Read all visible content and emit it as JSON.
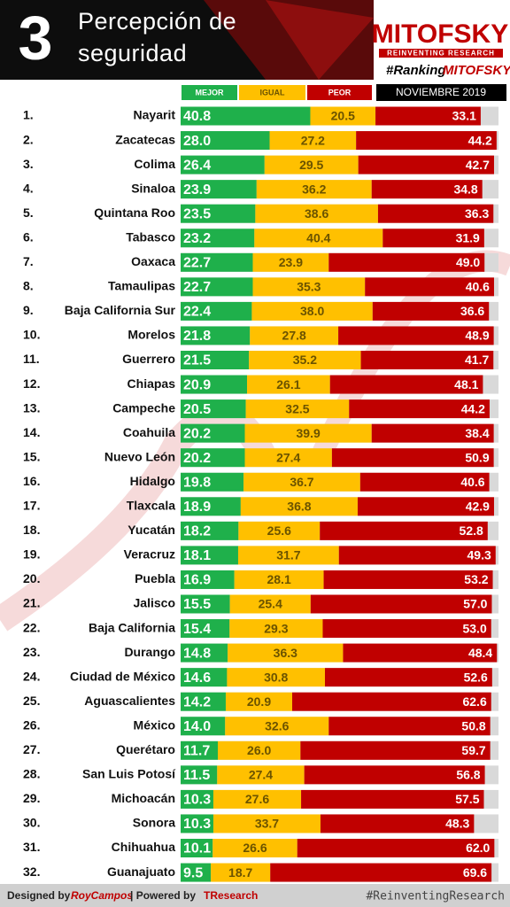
{
  "chart_data": {
    "type": "stacked-bar-horizontal",
    "number": "3",
    "title": "Percepción de seguridad",
    "brand": "MITOFSKY",
    "brand_tagline": "REINVENTING RESEARCH",
    "hashtag_prefix": "#Ranking",
    "hashtag_brand": "MITOFSKY",
    "period": "NOVIEMBRE 2019",
    "xlim": [
      0,
      100
    ],
    "remainder_color": "#d9d9d9",
    "ranks": [
      "1.",
      "2.",
      "3.",
      "4.",
      "5.",
      "6.",
      "7.",
      "8.",
      "9.",
      "10.",
      "11.",
      "12.",
      "13.",
      "14.",
      "15.",
      "16.",
      "17.",
      "18.",
      "19.",
      "20.",
      "21.",
      "22.",
      "23.",
      "24.",
      "25.",
      "26.",
      "27.",
      "28.",
      "29.",
      "30.",
      "31.",
      "32."
    ],
    "categories": [
      "Nayarit",
      "Zacatecas",
      "Colima",
      "Sinaloa",
      "Quintana Roo",
      "Tabasco",
      "Oaxaca",
      "Tamaulipas",
      "Baja California Sur",
      "Morelos",
      "Guerrero",
      "Chiapas",
      "Campeche",
      "Coahuila",
      "Nuevo León",
      "Hidalgo",
      "Tlaxcala",
      "Yucatán",
      "Veracruz",
      "Puebla",
      "Jalisco",
      "Baja California",
      "Durango",
      "Ciudad de México",
      "Aguascalientes",
      "México",
      "Querétaro",
      "San Luis Potosí",
      "Michoacán",
      "Sonora",
      "Chihuahua",
      "Guanajuato"
    ],
    "series": [
      {
        "name": "MEJOR",
        "color": "#1fb04b",
        "label_color": "#ffffff",
        "values": [
          40.8,
          28.0,
          26.4,
          23.9,
          23.5,
          23.2,
          22.7,
          22.7,
          22.4,
          21.8,
          21.5,
          20.9,
          20.5,
          20.2,
          20.2,
          19.8,
          18.9,
          18.2,
          18.1,
          16.9,
          15.5,
          15.4,
          14.8,
          14.6,
          14.2,
          14.0,
          11.7,
          11.5,
          10.3,
          10.3,
          10.1,
          9.5
        ],
        "value_labels": [
          "40.8",
          "28.0",
          "26.4",
          "23.9",
          "23.5",
          "23.2",
          "22.7",
          "22.7",
          "22.4",
          "21.8",
          "21.5",
          "20.9",
          "20.5",
          "20.2",
          "20.2",
          "19.8",
          "18.9",
          "18.2",
          "18.1",
          "16.9",
          "15.5",
          "15.4",
          "14.8",
          "14.6",
          "14.2",
          "14.0",
          "11.7",
          "11.5",
          "10.3",
          "10.3",
          "10.1",
          "9.5"
        ]
      },
      {
        "name": "IGUAL",
        "color": "#ffc000",
        "label_color": "#6b5300",
        "values": [
          20.5,
          27.2,
          29.5,
          36.2,
          38.6,
          40.4,
          23.9,
          35.3,
          38.0,
          27.8,
          35.2,
          26.1,
          32.5,
          39.9,
          27.4,
          36.7,
          36.8,
          25.6,
          31.7,
          28.1,
          25.4,
          29.3,
          36.3,
          30.8,
          20.9,
          32.6,
          26.0,
          27.4,
          27.6,
          33.7,
          26.6,
          18.7
        ],
        "value_labels": [
          "20.5",
          "27.2",
          "29.5",
          "36.2",
          "38.6",
          "40.4",
          "23.9",
          "35.3",
          "38.0",
          "27.8",
          "35.2",
          "26.1",
          "32.5",
          "39.9",
          "27.4",
          "36.7",
          "36.8",
          "25.6",
          "31.7",
          "28.1",
          "25.4",
          "29.3",
          "36.3",
          "30.8",
          "20.9",
          "32.6",
          "26.0",
          "27.4",
          "27.6",
          "33.7",
          "26.6",
          "18.7"
        ]
      },
      {
        "name": "PEOR",
        "color": "#c00000",
        "label_color": "#ffffff",
        "values": [
          33.1,
          44.2,
          42.7,
          34.8,
          36.3,
          31.9,
          49.0,
          40.6,
          36.6,
          48.9,
          41.7,
          48.1,
          44.2,
          38.4,
          50.9,
          40.6,
          42.9,
          52.8,
          49.3,
          53.2,
          57.0,
          53.0,
          48.4,
          52.6,
          62.6,
          50.8,
          59.7,
          56.8,
          57.5,
          48.3,
          62.0,
          69.6
        ],
        "value_labels": [
          "33.1",
          "44.2",
          "42.7",
          "34.8",
          "36.3",
          "31.9",
          "49.0",
          "40.6",
          "36.6",
          "48.9",
          "41.7",
          "48.1",
          "44.2",
          "38.4",
          "50.9",
          "40.6",
          "42.9",
          "52.8",
          "49.3",
          "53.2",
          "57.0",
          "53.0",
          "48.4",
          "52.6",
          "62.6",
          "50.8",
          "59.7",
          "56.8",
          "57.5",
          "48.3",
          "62.0",
          "69.6"
        ]
      }
    ],
    "footer": {
      "designed": "Designed by",
      "designer": "RoyCampos",
      "separator": "| Powered by",
      "powered": "TResearch",
      "hashtag": "#ReinventingResearch"
    }
  }
}
